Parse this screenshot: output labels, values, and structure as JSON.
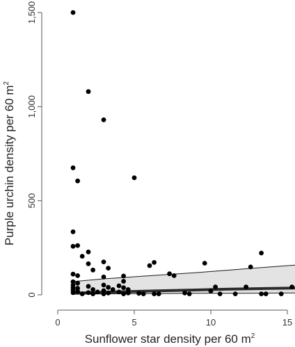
{
  "chart_data": {
    "type": "scatter",
    "xlabel": "Sunflower star density per 60 m",
    "xlabel_superscript": "2",
    "ylabel": "Purple urchin density per 60 m",
    "ylabel_superscript": "2",
    "xlim": [
      0,
      15.5
    ],
    "ylim": [
      0,
      1500
    ],
    "x_ticks": [
      0,
      5,
      10,
      15
    ],
    "x_tick_labels": [
      "0",
      "5",
      "10",
      "15"
    ],
    "y_ticks": [
      0,
      500,
      1000,
      1500
    ],
    "y_tick_labels": [
      "0",
      "500",
      "1,000",
      "1,500"
    ],
    "grid": false,
    "legend": "none",
    "colors": {
      "points": "#000000",
      "fit_line": "#2b2b2b",
      "band_fill": "#e3e3e3",
      "band_edge": "#1a1a1a",
      "axis": "#555555"
    },
    "points": [
      {
        "x": 1.0,
        "y": 1500
      },
      {
        "x": 2.0,
        "y": 1080
      },
      {
        "x": 3.0,
        "y": 930
      },
      {
        "x": 1.0,
        "y": 675
      },
      {
        "x": 1.3,
        "y": 605
      },
      {
        "x": 5.0,
        "y": 622
      },
      {
        "x": 1.0,
        "y": 335
      },
      {
        "x": 1.0,
        "y": 258
      },
      {
        "x": 1.3,
        "y": 262
      },
      {
        "x": 1.6,
        "y": 205
      },
      {
        "x": 2.0,
        "y": 228
      },
      {
        "x": 2.0,
        "y": 165
      },
      {
        "x": 2.3,
        "y": 132
      },
      {
        "x": 3.0,
        "y": 175
      },
      {
        "x": 3.3,
        "y": 142
      },
      {
        "x": 1.0,
        "y": 110
      },
      {
        "x": 1.3,
        "y": 102
      },
      {
        "x": 1.0,
        "y": 70
      },
      {
        "x": 1.3,
        "y": 62
      },
      {
        "x": 1.0,
        "y": 52
      },
      {
        "x": 1.0,
        "y": 38
      },
      {
        "x": 1.0,
        "y": 25
      },
      {
        "x": 1.0,
        "y": 12
      },
      {
        "x": 1.3,
        "y": 35
      },
      {
        "x": 1.3,
        "y": 18
      },
      {
        "x": 1.6,
        "y": 5
      },
      {
        "x": 2.0,
        "y": 45
      },
      {
        "x": 2.0,
        "y": 12
      },
      {
        "x": 2.3,
        "y": 28
      },
      {
        "x": 2.3,
        "y": 5
      },
      {
        "x": 2.6,
        "y": 15
      },
      {
        "x": 3.0,
        "y": 95
      },
      {
        "x": 3.0,
        "y": 52
      },
      {
        "x": 3.0,
        "y": 22
      },
      {
        "x": 3.0,
        "y": 5
      },
      {
        "x": 3.3,
        "y": 40
      },
      {
        "x": 3.3,
        "y": 10
      },
      {
        "x": 3.6,
        "y": 28
      },
      {
        "x": 4.0,
        "y": 48
      },
      {
        "x": 4.0,
        "y": 15
      },
      {
        "x": 4.3,
        "y": 100
      },
      {
        "x": 4.3,
        "y": 72
      },
      {
        "x": 4.3,
        "y": 38
      },
      {
        "x": 4.3,
        "y": 5
      },
      {
        "x": 4.6,
        "y": 28
      },
      {
        "x": 4.6,
        "y": 10
      },
      {
        "x": 5.3,
        "y": 8
      },
      {
        "x": 5.6,
        "y": 5
      },
      {
        "x": 6.0,
        "y": 155
      },
      {
        "x": 6.3,
        "y": 172
      },
      {
        "x": 6.3,
        "y": 5
      },
      {
        "x": 6.6,
        "y": 5
      },
      {
        "x": 7.3,
        "y": 112
      },
      {
        "x": 7.6,
        "y": 102
      },
      {
        "x": 8.3,
        "y": 10
      },
      {
        "x": 8.6,
        "y": 5
      },
      {
        "x": 9.6,
        "y": 168
      },
      {
        "x": 10.0,
        "y": 20
      },
      {
        "x": 10.3,
        "y": 42
      },
      {
        "x": 10.6,
        "y": 5
      },
      {
        "x": 11.6,
        "y": 5
      },
      {
        "x": 12.3,
        "y": 42
      },
      {
        "x": 12.6,
        "y": 148
      },
      {
        "x": 13.3,
        "y": 222
      },
      {
        "x": 13.3,
        "y": 5
      },
      {
        "x": 13.6,
        "y": 5
      },
      {
        "x": 14.6,
        "y": 5
      },
      {
        "x": 15.3,
        "y": 42
      }
    ],
    "fit": {
      "x": [
        0.9,
        3,
        5,
        7,
        9,
        11,
        13,
        15.5
      ],
      "mean": [
        8,
        14,
        18,
        22,
        26,
        30,
        33,
        36
      ],
      "upper": [
        70,
        85,
        96,
        107,
        118,
        130,
        143,
        158
      ],
      "lower": [
        3,
        5,
        6,
        7,
        8,
        8,
        9,
        10
      ]
    }
  }
}
